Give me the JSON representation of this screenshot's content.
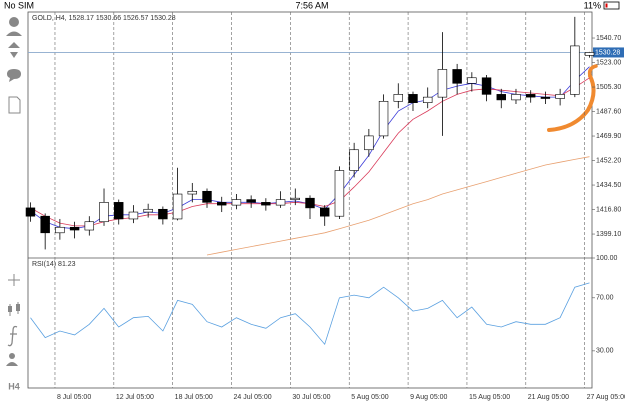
{
  "status_bar": {
    "carrier": "No SIM",
    "time": "7:56 AM",
    "battery": "11%"
  },
  "toolbar": {
    "timeframe": "H4"
  },
  "chart_data": [
    {
      "type": "candlestick",
      "title": "GOLD, H4, 1528.17 1530.66 1526.57 1530.28",
      "x": [
        0,
        6,
        12,
        18,
        24,
        30,
        36,
        42,
        48,
        54,
        60,
        66,
        72,
        78,
        84,
        90,
        96,
        102,
        108,
        114,
        120,
        126,
        132,
        138,
        144,
        150,
        156,
        162,
        168,
        174,
        180,
        186,
        192,
        198,
        204,
        210,
        216,
        222,
        228
      ],
      "open": [
        1418,
        1412,
        1400,
        1404,
        1402,
        1408,
        1422,
        1410,
        1415,
        1417,
        1410,
        1428,
        1430,
        1422,
        1420,
        1424,
        1422,
        1420,
        1424,
        1425,
        1418,
        1412,
        1445,
        1460,
        1470,
        1495,
        1500,
        1494,
        1498,
        1518,
        1508,
        1512,
        1500,
        1496,
        1500,
        1498,
        1497,
        1500,
        1528.17
      ],
      "high": [
        1422,
        1414,
        1410,
        1408,
        1412,
        1432,
        1424,
        1420,
        1421,
        1419,
        1447,
        1436,
        1432,
        1426,
        1428,
        1427,
        1425,
        1430,
        1432,
        1427,
        1420,
        1448,
        1465,
        1475,
        1500,
        1508,
        1502,
        1505,
        1545,
        1522,
        1516,
        1514,
        1504,
        1504,
        1503,
        1502,
        1504,
        1556,
        1530.66
      ],
      "low": [
        1408,
        1388,
        1395,
        1396,
        1398,
        1405,
        1406,
        1407,
        1411,
        1406,
        1409,
        1422,
        1418,
        1415,
        1417,
        1418,
        1416,
        1418,
        1420,
        1410,
        1405,
        1410,
        1440,
        1455,
        1468,
        1490,
        1488,
        1490,
        1470,
        1500,
        1502,
        1495,
        1490,
        1493,
        1494,
        1493,
        1492,
        1498,
        1526.57
      ],
      "close": [
        1412,
        1400,
        1404,
        1402,
        1408,
        1422,
        1410,
        1415,
        1417,
        1410,
        1428,
        1430,
        1422,
        1420,
        1424,
        1422,
        1420,
        1424,
        1425,
        1418,
        1412,
        1445,
        1460,
        1470,
        1495,
        1500,
        1494,
        1498,
        1518,
        1508,
        1512,
        1500,
        1496,
        1500,
        1498,
        1497,
        1500,
        1535,
        1530.28
      ],
      "up_color": "#ffffff",
      "down_color": "#000000",
      "series": [
        {
          "color": "#3b3bd9",
          "values": [
            1416,
            1408,
            1404,
            1403,
            1405,
            1412,
            1413,
            1413,
            1415,
            1414,
            1418,
            1424,
            1424,
            1422,
            1422,
            1422,
            1421,
            1422,
            1423,
            1421,
            1417,
            1428,
            1442,
            1456,
            1474,
            1488,
            1494,
            1496,
            1503,
            1506,
            1508,
            1506,
            1502,
            1500,
            1499,
            1498,
            1498,
            1510,
            1520
          ]
        },
        {
          "color": "#d93b5a",
          "values": [
            1418,
            1412,
            1407,
            1405,
            1405,
            1408,
            1410,
            1411,
            1413,
            1413,
            1415,
            1419,
            1421,
            1421,
            1421,
            1421,
            1421,
            1421,
            1422,
            1421,
            1419,
            1423,
            1433,
            1444,
            1458,
            1472,
            1482,
            1488,
            1495,
            1500,
            1503,
            1504,
            1503,
            1502,
            1501,
            1500,
            1499,
            1505,
            1512
          ]
        },
        {
          "color": "#e8a070",
          "values": [
            null,
            null,
            null,
            null,
            null,
            null,
            null,
            null,
            null,
            null,
            null,
            null,
            1384,
            1386,
            1388,
            1390,
            1392,
            1394,
            1396,
            1398,
            1400,
            1403,
            1406,
            1409,
            1413,
            1417,
            1421,
            1424,
            1428,
            1431,
            1434,
            1437,
            1440,
            1443,
            1446,
            1449,
            1451,
            1453,
            1455
          ]
        }
      ],
      "bid_line": 1530.28,
      "xlim": [
        -1,
        229
      ],
      "xticks": [
        {
          "value": 10,
          "label": "8 Jul 05:00"
        },
        {
          "value": 34,
          "label": "12 Jul 05:00"
        },
        {
          "value": 58,
          "label": "18 Jul 05:00"
        },
        {
          "value": 82,
          "label": "24 Jul 05:00"
        },
        {
          "value": 106,
          "label": "30 Jul 05:00"
        },
        {
          "value": 130,
          "label": "5 Aug 05:00"
        },
        {
          "value": 154,
          "label": "9 Aug 05:00"
        },
        {
          "value": 178,
          "label": "15 Aug 05:00"
        },
        {
          "value": 202,
          "label": "21 Aug 05:00"
        },
        {
          "value": 226,
          "label": "27 Aug 05:00"
        }
      ],
      "ylim": [
        1381.8,
        1559.5
      ],
      "yticks": [
        {
          "value": 1540.7,
          "label": "1540.70"
        },
        {
          "value": 1523,
          "label": "1523.00"
        },
        {
          "value": 1505.3,
          "label": "1505.30"
        },
        {
          "value": 1487.6,
          "label": "1487.60"
        },
        {
          "value": 1469.9,
          "label": "1469.90"
        },
        {
          "value": 1452.2,
          "label": "1452.20"
        },
        {
          "value": 1434.5,
          "label": "1434.50"
        },
        {
          "value": 1416.8,
          "label": "1416.80"
        },
        {
          "value": 1399.1,
          "label": "1399.10"
        }
      ],
      "xgrid": true
    },
    {
      "type": "line",
      "title": "RSI(14) 81.23",
      "color": "#5aa0e0",
      "x": [
        0,
        6,
        12,
        18,
        24,
        30,
        36,
        42,
        48,
        54,
        60,
        66,
        72,
        78,
        84,
        90,
        96,
        102,
        108,
        114,
        120,
        126,
        132,
        138,
        144,
        150,
        156,
        162,
        168,
        174,
        180,
        186,
        192,
        198,
        204,
        210,
        216,
        222,
        228
      ],
      "values": [
        55,
        40,
        45,
        42,
        50,
        62,
        48,
        55,
        56,
        45,
        68,
        65,
        52,
        48,
        55,
        50,
        47,
        55,
        58,
        48,
        35,
        70,
        72,
        70,
        78,
        70,
        60,
        62,
        68,
        55,
        63,
        50,
        48,
        52,
        50,
        50,
        55,
        78,
        81.23
      ],
      "xlim": [
        -1,
        229
      ],
      "ylim": [
        2,
        100
      ],
      "yticks": [
        {
          "value": 100,
          "label": "100.00"
        },
        {
          "value": 70,
          "label": "70.00"
        },
        {
          "value": 30,
          "label": "30.00"
        }
      ]
    }
  ]
}
